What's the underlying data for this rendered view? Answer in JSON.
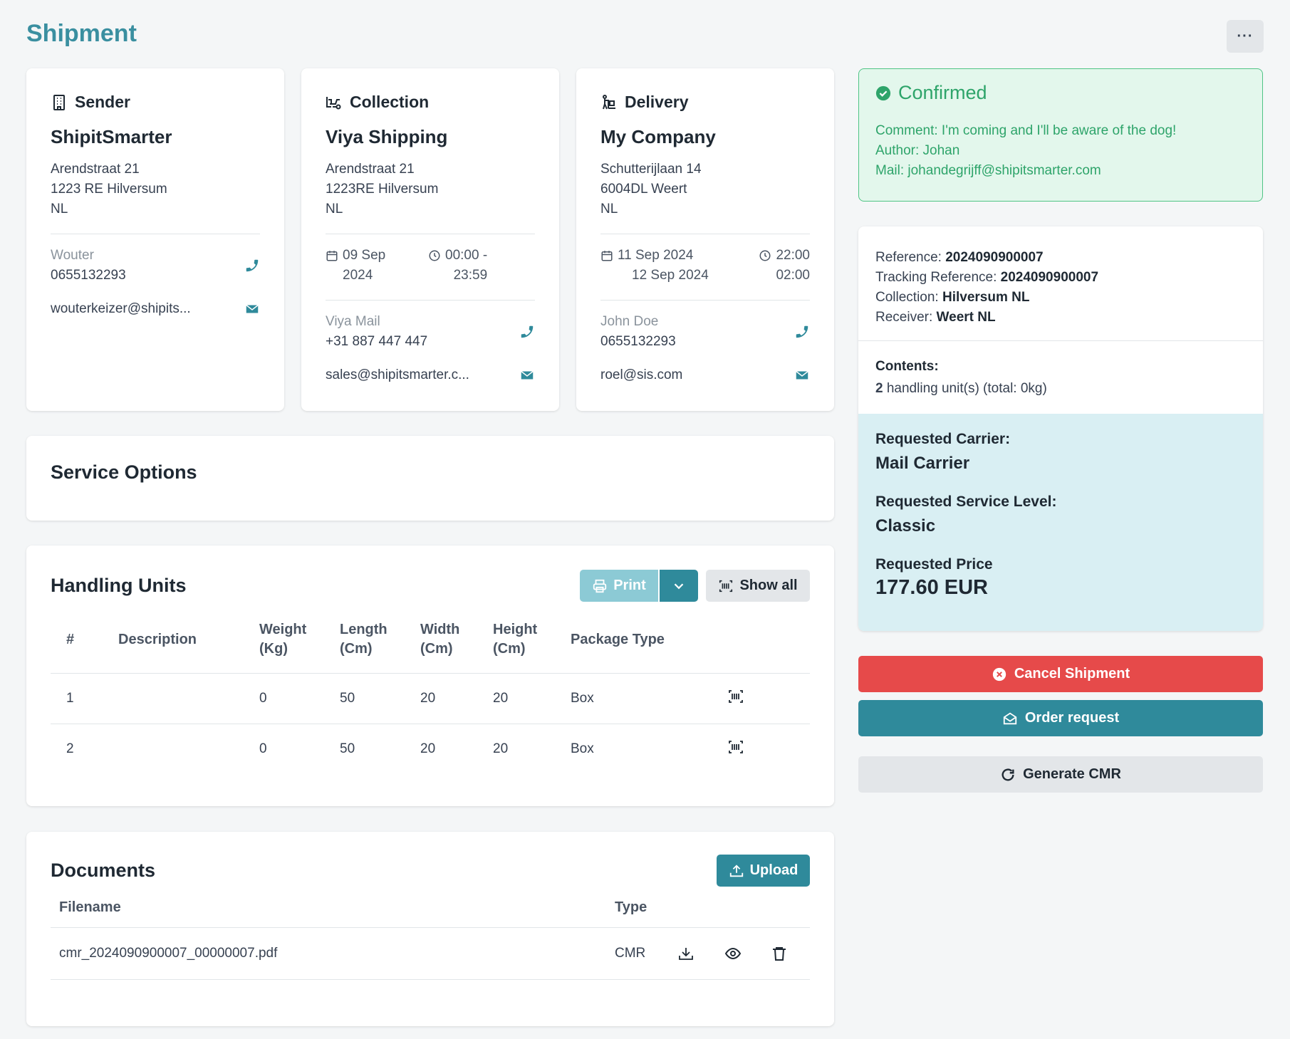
{
  "page": {
    "title": "Shipment",
    "more_label": "···"
  },
  "sender": {
    "heading": "Sender",
    "company": "ShipitSmarter",
    "address": [
      "Arendstraat 21",
      "1223 RE Hilversum",
      "NL"
    ],
    "contact_name": "Wouter",
    "phone": "0655132293",
    "email": "wouterkeizer@shipits..."
  },
  "collection": {
    "heading": "Collection",
    "company": "Viya Shipping",
    "address": [
      "Arendstraat 21",
      "1223RE Hilversum",
      "NL"
    ],
    "date_line1": "09 Sep",
    "date_line2": "2024",
    "time_line1": "00:00 -",
    "time_line2": "23:59",
    "contact_name": "Viya Mail",
    "phone": "+31 887 447 447",
    "email": "sales@shipitsmarter.c..."
  },
  "delivery": {
    "heading": "Delivery",
    "company": "My Company",
    "address": [
      "Schutterijlaan 14",
      "6004DL Weert",
      "NL"
    ],
    "date_line1": "11 Sep 2024",
    "date_line2": "12 Sep 2024",
    "time_line1": "22:00",
    "time_line2": "02:00",
    "contact_name": "John Doe",
    "phone": "0655132293",
    "email": "roel@sis.com"
  },
  "service_options": {
    "title": "Service Options"
  },
  "handling_units": {
    "title": "Handling Units",
    "print_label": "Print",
    "show_all_label": "Show all",
    "columns": [
      "#",
      "Description",
      "Weight (Kg)",
      "Length (Cm)",
      "Width (Cm)",
      "Height (Cm)",
      "Package Type"
    ],
    "rows": [
      {
        "num": "1",
        "description": "",
        "weight": "0",
        "length": "50",
        "width": "20",
        "height": "20",
        "package_type": "Box"
      },
      {
        "num": "2",
        "description": "",
        "weight": "0",
        "length": "50",
        "width": "20",
        "height": "20",
        "package_type": "Box"
      }
    ]
  },
  "documents": {
    "title": "Documents",
    "upload_label": "Upload",
    "col_filename": "Filename",
    "col_type": "Type",
    "rows": [
      {
        "filename": "cmr_2024090900007_00000007.pdf",
        "type": "CMR"
      }
    ]
  },
  "status": {
    "label": "Confirmed",
    "comment": "Comment: I'm coming and I'll be aware of the dog!",
    "author": "Author: Johan",
    "mail": "Mail: johandegrijff@shipitsmarter.com"
  },
  "reference": {
    "reference_label": "Reference:",
    "reference_value": "2024090900007",
    "tracking_label": "Tracking Reference:",
    "tracking_value": "2024090900007",
    "collection_label": "Collection:",
    "collection_value": "Hilversum NL",
    "receiver_label": "Receiver:",
    "receiver_value": "Weert NL",
    "contents_label": "Contents:",
    "contents_count": "2",
    "contents_text": "handling unit(s) (total: 0kg)"
  },
  "carrier": {
    "carrier_label": "Requested Carrier:",
    "carrier_value": "Mail Carrier",
    "service_label": "Requested Service Level:",
    "service_value": "Classic",
    "price_label": "Requested Price",
    "price_value": "177.60 EUR"
  },
  "actions": {
    "cancel_label": "Cancel Shipment",
    "order_label": "Order request",
    "cmr_label": "Generate CMR"
  },
  "colors": {
    "accent": "#2f8a9b",
    "title": "#3a8fa0",
    "danger": "#e64a4a",
    "success_bg": "#e3f7ec",
    "success_text": "#2ea46a",
    "carrier_bg": "#d9eff3",
    "print_disabled": "#8ccad5"
  }
}
